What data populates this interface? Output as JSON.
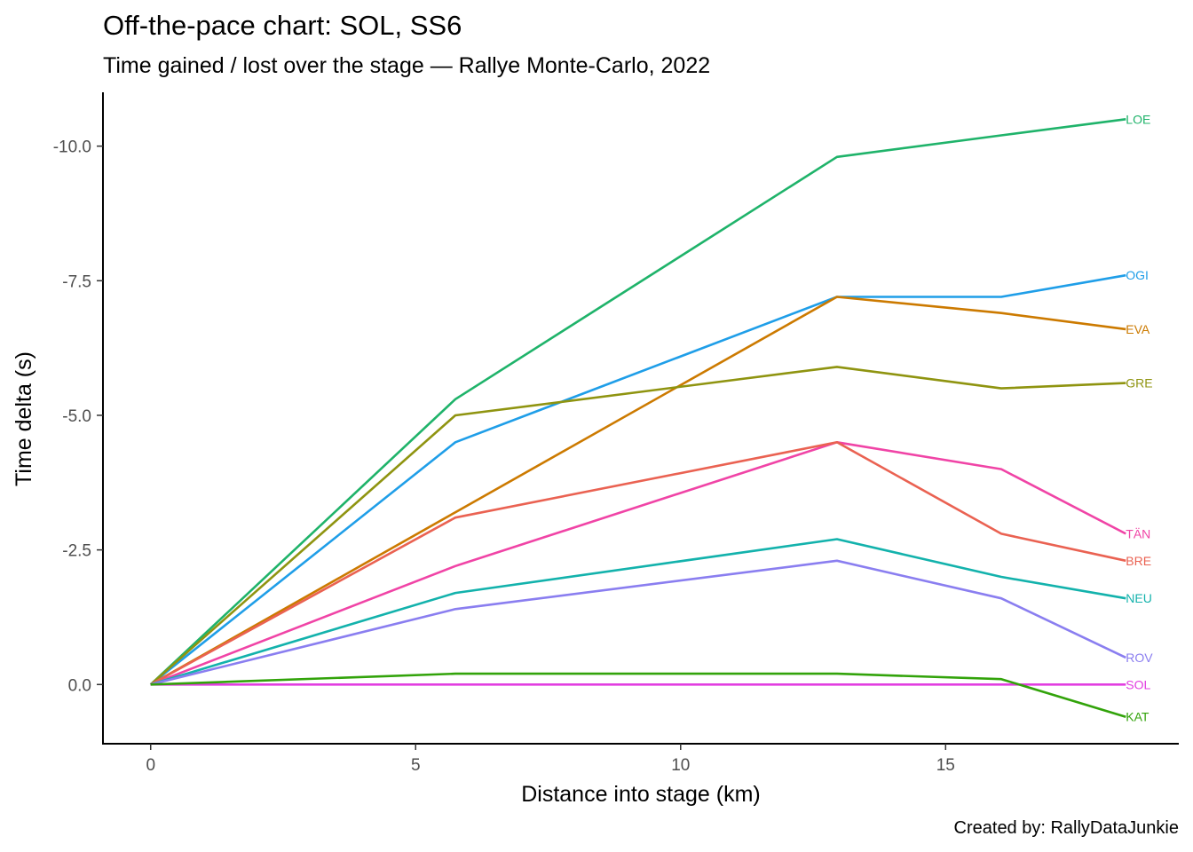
{
  "chart_data": {
    "type": "line",
    "title": "Off-the-pace chart: SOL, SS6",
    "subtitle": "Time gained / lost over the stage — Rallye Monte-Carlo, 2022",
    "xlabel": "Distance into stage (km)",
    "ylabel": "Time delta (s)",
    "caption": "Created by: RallyDataJunkie",
    "xlim": [
      -0.9,
      19.4
    ],
    "ylim": [
      1.1,
      -11.0
    ],
    "y_reversed": true,
    "x_ticks": [
      0,
      5,
      10,
      15
    ],
    "x_tick_labels": [
      "0",
      "5",
      "10",
      "15"
    ],
    "y_ticks": [
      -10.0,
      -7.5,
      -5.0,
      -2.5,
      0.0
    ],
    "y_tick_labels": [
      "-10.0",
      "-7.5",
      "-5.0",
      "-2.5",
      "0.0"
    ],
    "grid": false,
    "legend": "none (direct end labels)",
    "x": [
      0,
      5.75,
      12.95,
      16.05,
      18.4
    ],
    "series": [
      {
        "name": "LOE",
        "color": "#1fb36a",
        "values": [
          0,
          -5.3,
          -9.8,
          -10.2,
          -10.5
        ]
      },
      {
        "name": "OGI",
        "color": "#1f9ee8",
        "values": [
          0,
          -4.5,
          -7.2,
          -7.2,
          -7.6
        ]
      },
      {
        "name": "EVA",
        "color": "#cc7a00",
        "values": [
          0,
          -3.2,
          -7.2,
          -6.9,
          -6.6
        ]
      },
      {
        "name": "GRE",
        "color": "#8f9410",
        "values": [
          0,
          -5.0,
          -5.9,
          -5.5,
          -5.6
        ]
      },
      {
        "name": "TÄN",
        "color": "#f044a6",
        "values": [
          0,
          -2.2,
          -4.5,
          -4.0,
          -2.8
        ]
      },
      {
        "name": "BRE",
        "color": "#ea6252",
        "values": [
          0,
          -3.1,
          -4.5,
          -2.8,
          -2.3
        ]
      },
      {
        "name": "NEU",
        "color": "#13b2ac",
        "values": [
          0,
          -1.7,
          -2.7,
          -2.0,
          -1.6
        ]
      },
      {
        "name": "ROV",
        "color": "#8a7ef0",
        "values": [
          0,
          -1.4,
          -2.3,
          -1.6,
          -0.5
        ]
      },
      {
        "name": "SOL",
        "color": "#e23ee0",
        "values": [
          0,
          0.0,
          0.0,
          0.0,
          0.0
        ]
      },
      {
        "name": "KAT",
        "color": "#32a30a",
        "values": [
          0,
          -0.2,
          -0.2,
          -0.1,
          0.6
        ]
      }
    ]
  }
}
